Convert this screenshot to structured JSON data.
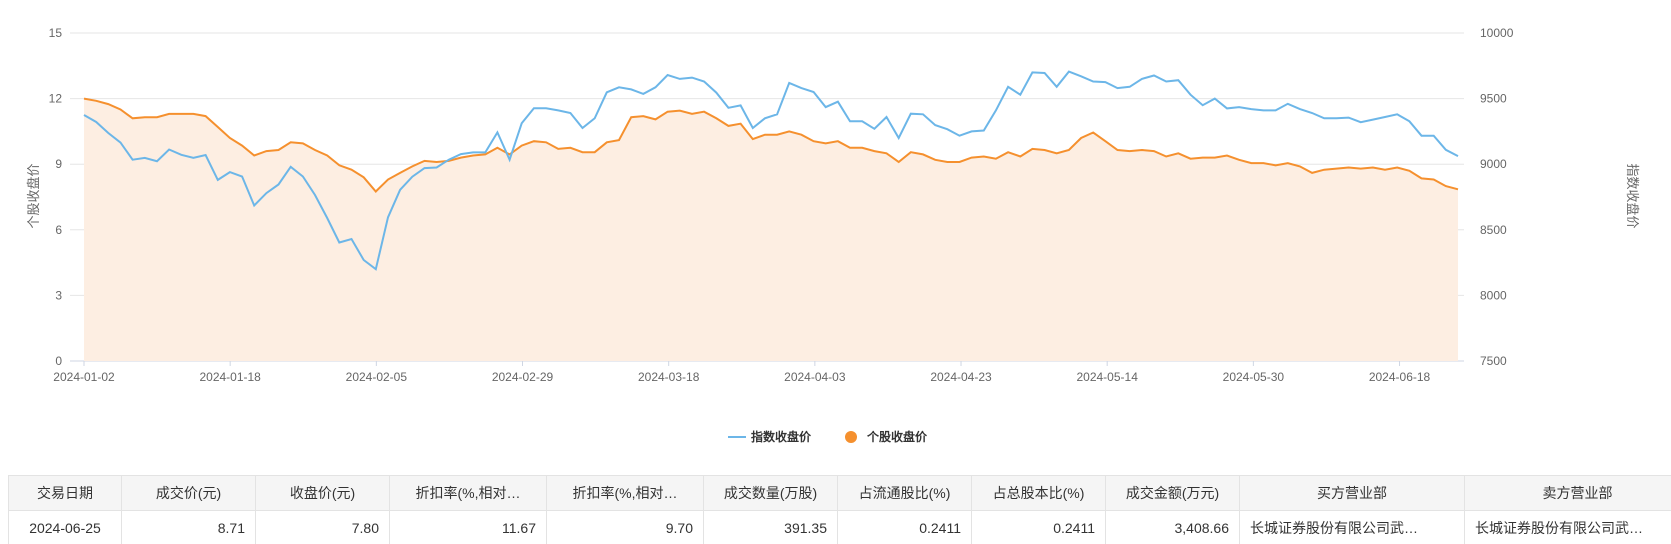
{
  "chart_data": {
    "type": "line",
    "title": "",
    "x_ticks": [
      "2024-01-02",
      "2024-01-18",
      "2024-02-05",
      "2024-02-29",
      "2024-03-18",
      "2024-04-03",
      "2024-04-23",
      "2024-05-14",
      "2024-05-30",
      "2024-06-18"
    ],
    "y_left": {
      "label": "个股收盘价",
      "min": 0,
      "max": 15,
      "ticks": [
        0,
        3,
        6,
        9,
        12,
        15
      ]
    },
    "y_right": {
      "label": "指数收盘价",
      "min": 7500,
      "max": 10000,
      "ticks": [
        7500,
        8000,
        8500,
        9000,
        9500,
        10000
      ]
    },
    "grid": true,
    "legend_position": "bottom-center",
    "series": [
      {
        "name": "指数收盘价",
        "axis": "right",
        "color": "#6cb6e8",
        "values": [
          9375,
          9322,
          9238,
          9165,
          9034,
          9048,
          9023,
          9112,
          9072,
          9048,
          9070,
          8880,
          8940,
          8906,
          8685,
          8780,
          8845,
          8980,
          8906,
          8765,
          8590,
          8403,
          8430,
          8270,
          8200,
          8595,
          8805,
          8905,
          8970,
          8975,
          9034,
          9077,
          9090,
          9090,
          9242,
          9034,
          9312,
          9426,
          9426,
          9410,
          9390,
          9276,
          9350,
          9548,
          9586,
          9570,
          9536,
          9586,
          9680,
          9650,
          9660,
          9630,
          9546,
          9430,
          9448,
          9276,
          9350,
          9380,
          9620,
          9580,
          9550,
          9435,
          9476,
          9327,
          9327,
          9270,
          9360,
          9200,
          9385,
          9380,
          9298,
          9267,
          9217,
          9250,
          9257,
          9410,
          9590,
          9530,
          9700,
          9695,
          9590,
          9706,
          9670,
          9630,
          9626,
          9580,
          9590,
          9650,
          9676,
          9630,
          9640,
          9530,
          9450,
          9500,
          9425,
          9435,
          9420,
          9410,
          9410,
          9460,
          9420,
          9390,
          9350,
          9350,
          9355,
          9320,
          9340,
          9360,
          9380,
          9327,
          9217,
          9217,
          9110,
          9062
        ]
      },
      {
        "name": "个股收盘价",
        "axis": "left",
        "color": "#f5902e",
        "values": [
          12.0,
          11.9,
          11.75,
          11.5,
          11.1,
          11.15,
          11.15,
          11.3,
          11.3,
          11.3,
          11.2,
          10.7,
          10.2,
          9.85,
          9.4,
          9.6,
          9.65,
          10.0,
          9.95,
          9.65,
          9.4,
          8.95,
          8.75,
          8.4,
          7.75,
          8.3,
          8.6,
          8.9,
          9.15,
          9.1,
          9.15,
          9.3,
          9.4,
          9.45,
          9.75,
          9.45,
          9.85,
          10.05,
          10.0,
          9.7,
          9.75,
          9.55,
          9.55,
          10.0,
          10.1,
          11.15,
          11.2,
          11.05,
          11.4,
          11.45,
          11.3,
          11.4,
          11.1,
          10.75,
          10.85,
          10.15,
          10.35,
          10.35,
          10.5,
          10.35,
          10.05,
          9.95,
          10.05,
          9.75,
          9.75,
          9.6,
          9.5,
          9.1,
          9.55,
          9.45,
          9.2,
          9.1,
          9.1,
          9.3,
          9.35,
          9.25,
          9.55,
          9.35,
          9.7,
          9.65,
          9.5,
          9.65,
          10.2,
          10.45,
          10.05,
          9.65,
          9.6,
          9.65,
          9.6,
          9.35,
          9.5,
          9.25,
          9.3,
          9.3,
          9.4,
          9.2,
          9.05,
          9.05,
          8.95,
          9.05,
          8.9,
          8.6,
          8.75,
          8.8,
          8.85,
          8.8,
          8.85,
          8.75,
          8.85,
          8.7,
          8.35,
          8.3,
          8.0,
          7.85
        ]
      }
    ]
  },
  "table": {
    "headers": [
      "交易日期",
      "成交价(元)",
      "收盘价(元)",
      "折扣率(%,相对…",
      "折扣率(%,相对…",
      "成交数量(万股)",
      "占流通股比(%)",
      "占总股本比(%)",
      "成交金额(万元)",
      "买方营业部",
      "卖方营业部"
    ],
    "rows": [
      [
        "2024-06-25",
        "8.71",
        "7.80",
        "11.67",
        "9.70",
        "391.35",
        "0.2411",
        "0.2411",
        "3,408.66",
        "长城证券股份有限公司武…",
        "长城证券股份有限公司武…"
      ]
    ]
  }
}
